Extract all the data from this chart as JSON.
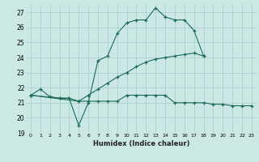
{
  "xlabel": "Humidex (Indice chaleur)",
  "bg_color": "#cce8e4",
  "grid_color": "#aacccc",
  "line_color": "#1a6b5a",
  "xlim": [
    -0.5,
    23.5
  ],
  "ylim": [
    19,
    27.5
  ],
  "xticks": [
    0,
    1,
    2,
    3,
    4,
    5,
    6,
    7,
    8,
    9,
    10,
    11,
    12,
    13,
    14,
    15,
    16,
    17,
    18,
    19,
    20,
    21,
    22,
    23
  ],
  "yticks": [
    19,
    20,
    21,
    22,
    23,
    24,
    25,
    26,
    27
  ],
  "curve1_x": [
    0,
    1,
    2,
    3,
    4,
    5,
    6,
    7,
    8,
    9,
    10,
    11,
    12,
    13,
    14,
    15,
    16,
    17,
    18
  ],
  "curve1_y": [
    21.5,
    21.9,
    21.4,
    21.3,
    21.3,
    19.5,
    21.0,
    23.8,
    24.1,
    25.6,
    26.3,
    26.5,
    26.5,
    27.3,
    26.7,
    26.5,
    26.5,
    25.8,
    24.1
  ],
  "curve2_x": [
    0,
    3,
    4,
    5,
    6,
    7,
    8,
    9,
    10,
    11,
    12,
    13,
    14,
    15,
    16,
    17,
    18,
    19,
    20,
    21,
    22,
    23
  ],
  "curve2_y": [
    21.5,
    21.3,
    21.3,
    21.1,
    21.1,
    21.1,
    21.1,
    21.1,
    21.5,
    21.5,
    21.5,
    21.5,
    21.5,
    21.0,
    21.0,
    21.0,
    21.0,
    20.9,
    20.9,
    20.8,
    20.8,
    20.8
  ],
  "curve3_x": [
    0,
    5,
    6,
    7,
    8,
    9,
    10,
    11,
    12,
    13,
    14,
    15,
    16,
    17,
    18
  ],
  "curve3_y": [
    21.5,
    21.1,
    21.5,
    21.9,
    22.3,
    22.7,
    23.0,
    23.4,
    23.7,
    23.9,
    24.0,
    24.1,
    24.2,
    24.3,
    24.1
  ]
}
